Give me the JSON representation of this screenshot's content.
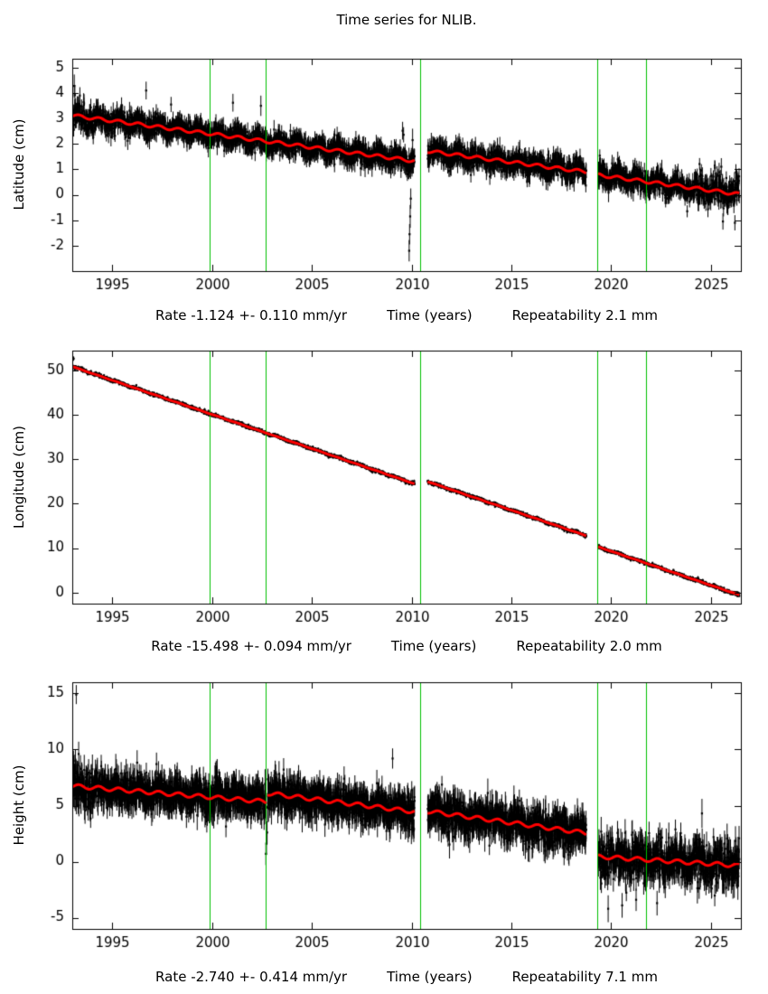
{
  "title": "Time series for NLIB.",
  "colors": {
    "background": "#ffffff",
    "points": "#000000",
    "trend": "#ff0000",
    "events": "#00c000"
  },
  "chart_data": [
    {
      "type": "scatter",
      "ylabel": "Latitude (cm)",
      "xlabel": "Time (years)",
      "rate_label": "Rate -1.124 +- 0.110 mm/yr",
      "repeatability_label": "Repeatability 2.1 mm",
      "xlim": [
        1993.0,
        2026.5
      ],
      "ylim": [
        -3.0,
        5.35
      ],
      "xticks": [
        1995,
        2000,
        2005,
        2010,
        2015,
        2020,
        2025
      ],
      "yticks": [
        -2,
        -1,
        0,
        1,
        2,
        3,
        4,
        5
      ],
      "x_data_range": [
        1993.04,
        2026.42
      ],
      "sample_step": 0.01,
      "grid": false,
      "event_lines_x": [
        1999.9,
        2002.7,
        2010.45,
        2019.3,
        2021.75
      ],
      "gaps": [
        [
          2010.15,
          2010.8
        ],
        [
          2018.75,
          2019.35
        ]
      ],
      "trend_segments": [
        [
          1993.0,
          3.12,
          2010.15,
          1.33
        ],
        [
          2010.8,
          1.72,
          2018.75,
          0.9
        ],
        [
          2019.35,
          0.78,
          2026.42,
          0.02
        ]
      ],
      "noise_sigma": 0.2,
      "noise_boost": [
        {
          "range": [
            1993.0,
            1994.2
          ],
          "sigma": 0.28
        },
        {
          "range": [
            2023.8,
            2026.42
          ],
          "sigma": 0.29
        }
      ],
      "seasonal_amp": 0.14,
      "trend_wiggle_amp": 0.06,
      "error_bar": 0.3,
      "outliers": [
        [
          1993.1,
          4.28,
          0.45
        ],
        [
          1993.13,
          3.92,
          0.4
        ],
        [
          1996.7,
          4.1,
          0.35
        ],
        [
          1997.95,
          3.55,
          0.3
        ],
        [
          2001.05,
          3.62,
          0.35
        ],
        [
          2002.45,
          3.5,
          0.4
        ],
        [
          2009.55,
          2.52,
          0.35
        ],
        [
          2009.6,
          2.36,
          0.3
        ],
        [
          2009.88,
          -2.2,
          0.42
        ],
        [
          2009.9,
          -1.55,
          0.4
        ],
        [
          2009.93,
          -0.85,
          0.45
        ],
        [
          2009.96,
          -0.15,
          0.4
        ],
        [
          2010.05,
          2.15,
          0.45
        ],
        [
          2025.6,
          -1.05,
          0.32
        ],
        [
          2026.2,
          -1.1,
          0.3
        ]
      ]
    },
    {
      "type": "scatter",
      "ylabel": "Longitude (cm)",
      "xlabel": "Time (years)",
      "rate_label": "Rate -15.498 +- 0.094 mm/yr",
      "repeatability_label": "Repeatability 2.0 mm",
      "xlim": [
        1993.0,
        2026.5
      ],
      "ylim": [
        -2.5,
        54.5
      ],
      "xticks": [
        1995,
        2000,
        2005,
        2010,
        2015,
        2020,
        2025
      ],
      "yticks": [
        0,
        10,
        20,
        30,
        40,
        50
      ],
      "x_data_range": [
        1993.04,
        2026.42
      ],
      "sample_step": 0.01,
      "grid": false,
      "event_lines_x": [
        1999.9,
        2002.7,
        2010.45,
        2019.3,
        2021.75
      ],
      "gaps": [
        [
          2010.15,
          2010.8
        ],
        [
          2018.75,
          2019.35
        ]
      ],
      "trend_segments": [
        [
          1993.0,
          50.9,
          2010.15,
          24.5
        ],
        [
          2010.8,
          25.0,
          2018.75,
          12.8
        ],
        [
          2019.35,
          10.3,
          2026.42,
          -0.55
        ]
      ],
      "noise_sigma": 0.18,
      "seasonal_amp": 0.1,
      "trend_wiggle_amp": 0.04,
      "error_bar": 0.28,
      "outliers": [
        [
          1993.07,
          52.7,
          0.5
        ]
      ]
    },
    {
      "type": "scatter",
      "ylabel": "Height (cm)",
      "xlabel": "Time (years)",
      "rate_label": "Rate -2.740 +- 0.414 mm/yr",
      "repeatability_label": "Repeatability 7.1 mm",
      "xlim": [
        1993.0,
        2026.5
      ],
      "ylim": [
        -6.0,
        16.0
      ],
      "xticks": [
        1995,
        2000,
        2005,
        2010,
        2015,
        2020,
        2025
      ],
      "yticks": [
        -5,
        0,
        5,
        10,
        15
      ],
      "x_data_range": [
        1993.04,
        2026.42
      ],
      "sample_step": 0.01,
      "grid": false,
      "event_lines_x": [
        1999.9,
        2002.7,
        2010.45,
        2019.3,
        2021.75
      ],
      "gaps": [
        [
          2010.15,
          2010.8
        ],
        [
          2018.75,
          2019.35
        ]
      ],
      "trend_segments": [
        [
          1993.0,
          6.75,
          2002.72,
          5.35
        ],
        [
          2002.78,
          6.1,
          2010.15,
          4.45
        ],
        [
          2010.8,
          4.5,
          2018.75,
          2.55
        ],
        [
          2019.35,
          0.45,
          2026.42,
          -0.35
        ]
      ],
      "noise_sigma": 0.75,
      "noise_boost": [
        {
          "range": [
            1993.0,
            1994.3
          ],
          "sigma": 1.0
        },
        {
          "range": [
            2019.35,
            2026.42
          ],
          "sigma": 0.95
        }
      ],
      "seasonal_amp": 0.25,
      "trend_wiggle_amp": 0.17,
      "error_bar": 1.05,
      "outliers": [
        [
          1993.2,
          14.9,
          0.85
        ],
        [
          1993.16,
          9.0,
          1.0
        ],
        [
          1993.32,
          9.6,
          1.1
        ],
        [
          2002.7,
          0.7,
          1.0
        ],
        [
          2002.73,
          1.6,
          1.0
        ],
        [
          2002.76,
          2.6,
          1.0
        ],
        [
          2009.05,
          9.2,
          0.9
        ],
        [
          2019.85,
          -4.2,
          1.2
        ],
        [
          2020.55,
          -3.9,
          1.1
        ],
        [
          2021.25,
          -3.4,
          1.0
        ],
        [
          2022.3,
          -3.7,
          1.1
        ],
        [
          2024.55,
          4.3,
          1.3
        ]
      ]
    }
  ]
}
